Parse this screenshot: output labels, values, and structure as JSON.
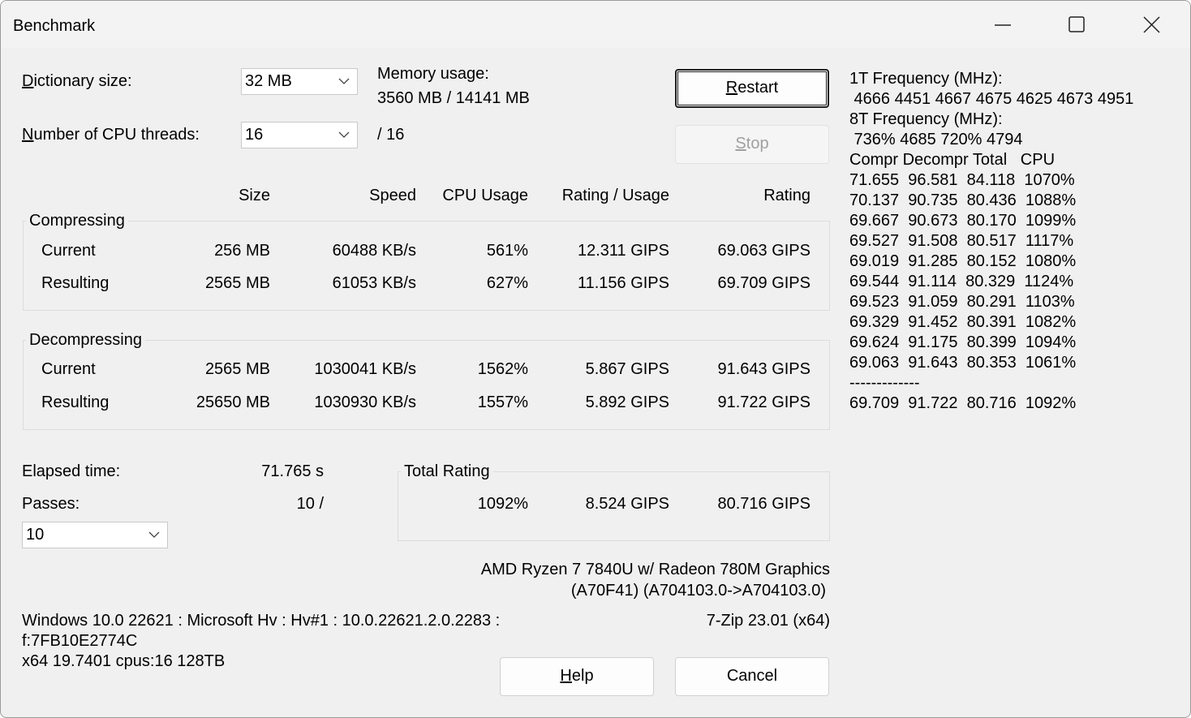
{
  "window": {
    "title": "Benchmark"
  },
  "settings": {
    "dictionary_label": "Dictionary size:",
    "dictionary_value": "32 MB",
    "threads_label": "Number of CPU threads:",
    "threads_value": "16",
    "threads_max": "/ 16",
    "memory_label": "Memory usage:",
    "memory_value": "3560 MB / 14141 MB"
  },
  "buttons": {
    "restart": "Restart",
    "stop": "Stop",
    "help": "Help",
    "cancel": "Cancel"
  },
  "table": {
    "headers": [
      "Size",
      "Speed",
      "CPU Usage",
      "Rating / Usage",
      "Rating"
    ],
    "compressing": {
      "title": "Compressing",
      "rows": [
        {
          "label": "Current",
          "size": "256 MB",
          "speed": "60488 KB/s",
          "cpu": "561%",
          "rpu": "12.311 GIPS",
          "rating": "69.063 GIPS"
        },
        {
          "label": "Resulting",
          "size": "2565 MB",
          "speed": "61053 KB/s",
          "cpu": "627%",
          "rpu": "11.156 GIPS",
          "rating": "69.709 GIPS"
        }
      ]
    },
    "decompressing": {
      "title": "Decompressing",
      "rows": [
        {
          "label": "Current",
          "size": "2565 MB",
          "speed": "1030041 KB/s",
          "cpu": "1562%",
          "rpu": "5.867 GIPS",
          "rating": "91.643 GIPS"
        },
        {
          "label": "Resulting",
          "size": "25650 MB",
          "speed": "1030930 KB/s",
          "cpu": "1557%",
          "rpu": "5.892 GIPS",
          "rating": "91.722 GIPS"
        }
      ]
    }
  },
  "elapsed": {
    "label": "Elapsed time:",
    "value": "71.765 s"
  },
  "passes": {
    "label": "Passes:",
    "value": "10 /",
    "combo_value": "10"
  },
  "total_rating": {
    "title": "Total Rating",
    "cpu": "1092%",
    "rpu": "8.524 GIPS",
    "rating": "80.716 GIPS"
  },
  "cpu_info": {
    "line1": "AMD Ryzen 7 7840U w/ Radeon 780M Graphics",
    "line2": "(A70F41) (A704103.0->A704103.0)"
  },
  "sys_info": {
    "line1": "Windows 10.0 22621 : Microsoft Hv : Hv#1 : 10.0.22621.2.0.2283 :",
    "line2": "f:7FB10E2774C",
    "line3": "x64 19.7401 cpus:16 128TB"
  },
  "version": "7-Zip 23.01 (x64)",
  "log": {
    "freq1_label": "1T Frequency (MHz):",
    "freq1_values": " 4666 4451 4667 4675 4625 4673 4951",
    "freq8_label": "8T Frequency (MHz):",
    "freq8_values": " 736% 4685 720% 4794",
    "header": "Compr Decompr Total   CPU",
    "rows": [
      "71.655  96.581  84.118  1070%",
      "70.137  90.735  80.436  1088%",
      "69.667  90.673  80.170  1099%",
      "69.527  91.508  80.517  1117%",
      "69.019  91.285  80.152  1080%",
      "69.544  91.114  80.329  1124%",
      "69.523  91.059  80.291  1103%",
      "69.329  91.452  80.391  1082%",
      "69.624  91.175  80.399  1094%",
      "69.063  91.643  80.353  1061%"
    ],
    "separator": "-------------",
    "total": "69.709  91.722  80.716  1092%"
  }
}
